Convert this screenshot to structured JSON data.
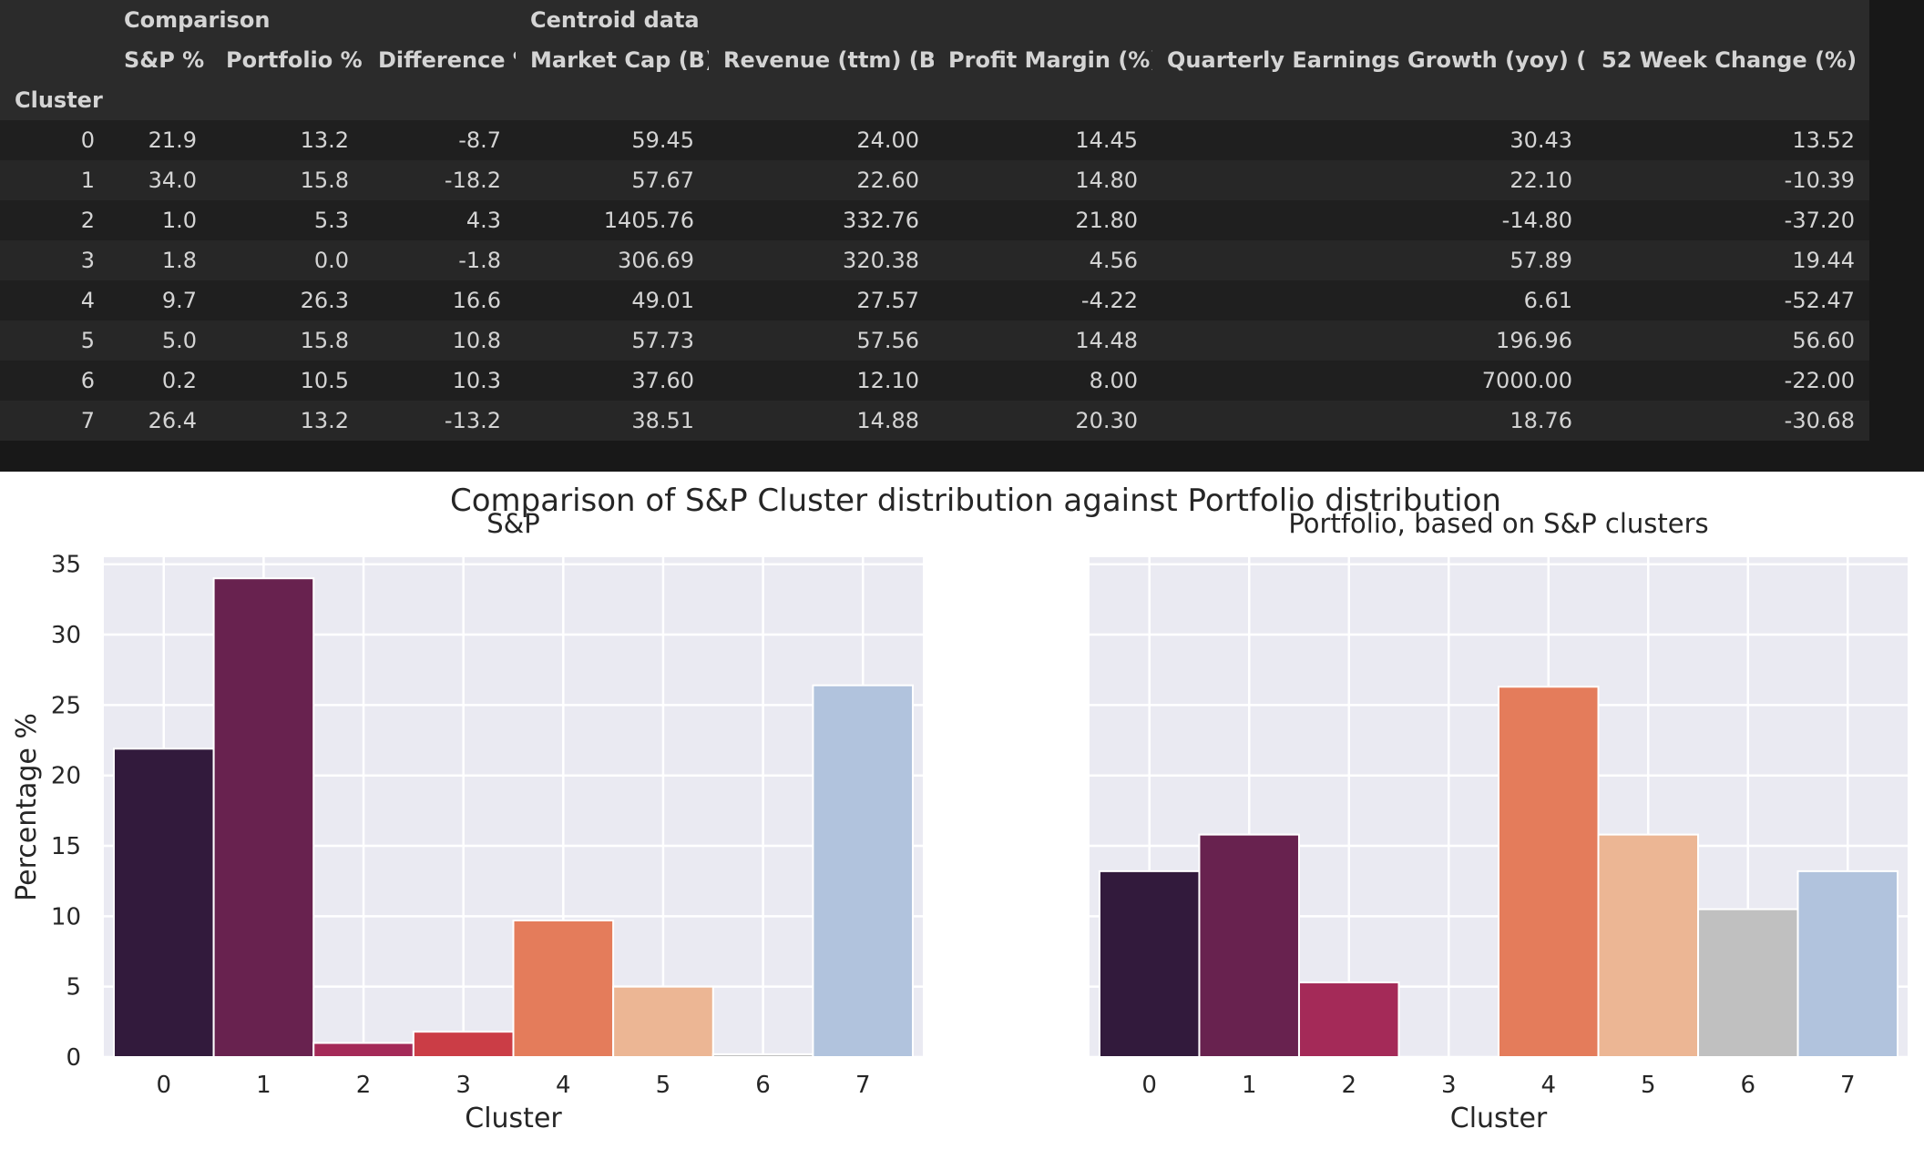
{
  "table": {
    "group_headers": {
      "comparison": "Comparison",
      "centroid": "Centroid data"
    },
    "columns": [
      "S&P %",
      "Portfolio %",
      "Difference %",
      "Market Cap (B)",
      "Revenue (ttm) (B)",
      "Profit Margin (%)",
      "Quarterly Earnings Growth (yoy) (%)",
      "52 Week Change (%)"
    ],
    "index_name": "Cluster",
    "rows": [
      [
        "0",
        "21.9",
        "13.2",
        "-8.7",
        "59.45",
        "24.00",
        "14.45",
        "30.43",
        "13.52"
      ],
      [
        "1",
        "34.0",
        "15.8",
        "-18.2",
        "57.67",
        "22.60",
        "14.80",
        "22.10",
        "-10.39"
      ],
      [
        "2",
        "1.0",
        "5.3",
        "4.3",
        "1405.76",
        "332.76",
        "21.80",
        "-14.80",
        "-37.20"
      ],
      [
        "3",
        "1.8",
        "0.0",
        "-1.8",
        "306.69",
        "320.38",
        "4.56",
        "57.89",
        "19.44"
      ],
      [
        "4",
        "9.7",
        "26.3",
        "16.6",
        "49.01",
        "27.57",
        "-4.22",
        "6.61",
        "-52.47"
      ],
      [
        "5",
        "5.0",
        "15.8",
        "10.8",
        "57.73",
        "57.56",
        "14.48",
        "196.96",
        "56.60"
      ],
      [
        "6",
        "0.2",
        "10.5",
        "10.3",
        "37.60",
        "12.10",
        "8.00",
        "7000.00",
        "-22.00"
      ],
      [
        "7",
        "26.4",
        "13.2",
        "-13.2",
        "38.51",
        "14.88",
        "20.30",
        "18.76",
        "-30.68"
      ]
    ]
  },
  "chart_data": {
    "suptitle": "Comparison of S&P Cluster distribution against Portfolio distribution",
    "shared_ylabel": "Percentage %",
    "colors": [
      "#321a3c",
      "#68224f",
      "#a42a58",
      "#cb3d46",
      "#e47c5b",
      "#ecb694",
      "#c0c0c0",
      "#b1c3dd"
    ],
    "charts": [
      {
        "type": "bar",
        "title": "S&P",
        "xlabel": "Cluster",
        "categories": [
          "0",
          "1",
          "2",
          "3",
          "4",
          "5",
          "6",
          "7"
        ],
        "values": [
          21.9,
          34.0,
          1.0,
          1.8,
          9.7,
          5.0,
          0.2,
          26.4
        ],
        "color_index": [
          0,
          1,
          2,
          3,
          4,
          5,
          6,
          7
        ],
        "ylim": [
          0,
          35.5
        ],
        "yticks": [
          0,
          5,
          10,
          15,
          20,
          25,
          30,
          35
        ],
        "grid": true
      },
      {
        "type": "bar",
        "title": "Portfolio, based on S&P clusters",
        "xlabel": "Cluster",
        "categories": [
          "0",
          "1",
          "2",
          "3",
          "4",
          "5",
          "6",
          "7"
        ],
        "values": [
          13.2,
          15.8,
          5.3,
          0.0,
          26.3,
          15.8,
          10.5,
          13.2
        ],
        "color_index": [
          0,
          1,
          2,
          3,
          4,
          5,
          6,
          7
        ],
        "ylim": [
          0,
          35.5
        ],
        "yticks": [
          0,
          5,
          10,
          15,
          20,
          25,
          30,
          35
        ],
        "grid": true
      }
    ]
  }
}
